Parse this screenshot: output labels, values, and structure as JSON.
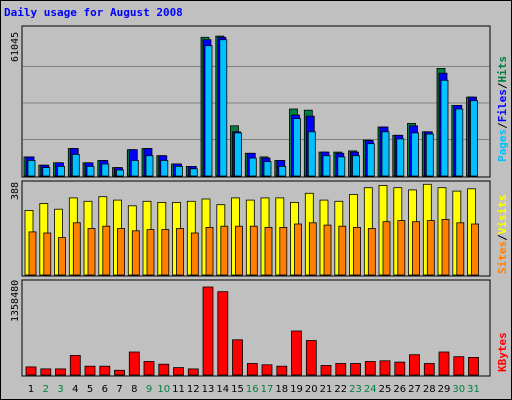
{
  "title": "Daily usage for August 2008",
  "colors": {
    "background": "#c0c0c0",
    "plot_bg": "#c0c0c0",
    "title": "#0000ff",
    "hits": "#008040",
    "files": "#0000ff",
    "pages": "#00c0ff",
    "visits": "#ffff00",
    "sites": "#ff8000",
    "kbytes": "#ff0000",
    "day_weekday": "#000000",
    "day_weekend": "#008040"
  },
  "chart_data": [
    {
      "type": "bar",
      "panel": "hits-files-pages",
      "ymax_label": "61045",
      "ylim": [
        0,
        61045
      ],
      "legend": [
        {
          "key": "pages",
          "label": "Pages"
        },
        {
          "key": "files",
          "label": "Files"
        },
        {
          "key": "hits",
          "label": "Hits"
        }
      ],
      "categories": [
        "1",
        "2",
        "3",
        "4",
        "5",
        "6",
        "7",
        "8",
        "9",
        "10",
        "11",
        "12",
        "13",
        "14",
        "15",
        "16",
        "17",
        "18",
        "19",
        "20",
        "21",
        "22",
        "23",
        "24",
        "25",
        "26",
        "27",
        "28",
        "29",
        "30",
        "31"
      ],
      "series": [
        {
          "name": "Hits",
          "key": "hits",
          "values": [
            8000,
            4500,
            5500,
            11500,
            5500,
            6500,
            3500,
            11000,
            11500,
            8500,
            5000,
            4000,
            58000,
            58500,
            21000,
            9500,
            8000,
            6500,
            28000,
            27500,
            10000,
            10000,
            10500,
            15000,
            20500,
            17000,
            22000,
            18500,
            45000,
            29500,
            33000
          ]
        },
        {
          "name": "Files",
          "key": "files",
          "values": [
            8000,
            4500,
            5500,
            11500,
            5500,
            6500,
            3500,
            11000,
            11500,
            8500,
            5000,
            4000,
            57000,
            58000,
            18500,
            9500,
            7500,
            6500,
            25500,
            25000,
            10000,
            9500,
            10000,
            14800,
            20500,
            17000,
            21000,
            18500,
            43000,
            29500,
            33000
          ]
        },
        {
          "name": "Pages",
          "key": "pages",
          "values": [
            6500,
            3500,
            4000,
            9000,
            4000,
            5000,
            2500,
            6500,
            8500,
            6500,
            4000,
            3000,
            54500,
            57000,
            18000,
            7500,
            6000,
            4000,
            24000,
            18500,
            8500,
            8000,
            8500,
            13500,
            18500,
            15500,
            18000,
            17500,
            40000,
            28000,
            31500
          ]
        }
      ]
    },
    {
      "type": "bar",
      "panel": "visits-sites",
      "ymax_label": "388",
      "ylim": [
        0,
        388
      ],
      "legend": [
        {
          "key": "sites",
          "label": "Sites"
        },
        {
          "key": "visits",
          "label": "Visits"
        }
      ],
      "categories": [
        "1",
        "2",
        "3",
        "4",
        "5",
        "6",
        "7",
        "8",
        "9",
        "10",
        "11",
        "12",
        "13",
        "14",
        "15",
        "16",
        "17",
        "18",
        "19",
        "20",
        "21",
        "22",
        "23",
        "24",
        "25",
        "26",
        "27",
        "28",
        "29",
        "30",
        "31"
      ],
      "series": [
        {
          "name": "Visits",
          "key": "visits",
          "values": [
            285,
            315,
            290,
            340,
            325,
            345,
            330,
            305,
            325,
            320,
            320,
            325,
            335,
            310,
            340,
            330,
            340,
            340,
            320,
            360,
            330,
            325,
            355,
            385,
            395,
            385,
            375,
            400,
            385,
            370,
            380
          ]
        },
        {
          "name": "Sites",
          "key": "sites",
          "values": [
            190,
            185,
            165,
            230,
            205,
            215,
            205,
            195,
            200,
            200,
            205,
            185,
            210,
            215,
            215,
            215,
            210,
            210,
            225,
            230,
            220,
            215,
            210,
            205,
            235,
            240,
            235,
            240,
            245,
            230,
            225
          ]
        }
      ]
    },
    {
      "type": "bar",
      "panel": "kbytes",
      "ymax_label": "1358480",
      "ylim": [
        0,
        1358480
      ],
      "legend": [
        {
          "key": "kbytes",
          "label": "KBytes"
        }
      ],
      "categories": [
        "1",
        "2",
        "3",
        "4",
        "5",
        "6",
        "7",
        "8",
        "9",
        "10",
        "11",
        "12",
        "13",
        "14",
        "15",
        "16",
        "17",
        "18",
        "19",
        "20",
        "21",
        "22",
        "23",
        "24",
        "25",
        "26",
        "27",
        "28",
        "29",
        "30",
        "31"
      ],
      "series": [
        {
          "name": "KBytes",
          "key": "kbytes",
          "values": [
            120000,
            90000,
            90000,
            290000,
            130000,
            130000,
            70000,
            340000,
            200000,
            160000,
            110000,
            90000,
            1300000,
            1230000,
            520000,
            170000,
            150000,
            130000,
            650000,
            510000,
            140000,
            170000,
            170000,
            200000,
            210000,
            190000,
            300000,
            170000,
            340000,
            270000,
            260000
          ]
        }
      ]
    }
  ],
  "days": [
    {
      "label": "1",
      "weekend": false
    },
    {
      "label": "2",
      "weekend": true
    },
    {
      "label": "3",
      "weekend": true
    },
    {
      "label": "4",
      "weekend": false
    },
    {
      "label": "5",
      "weekend": false
    },
    {
      "label": "6",
      "weekend": false
    },
    {
      "label": "7",
      "weekend": false
    },
    {
      "label": "8",
      "weekend": false
    },
    {
      "label": "9",
      "weekend": true
    },
    {
      "label": "10",
      "weekend": true
    },
    {
      "label": "11",
      "weekend": false
    },
    {
      "label": "12",
      "weekend": false
    },
    {
      "label": "13",
      "weekend": false
    },
    {
      "label": "14",
      "weekend": false
    },
    {
      "label": "15",
      "weekend": false
    },
    {
      "label": "16",
      "weekend": true
    },
    {
      "label": "17",
      "weekend": true
    },
    {
      "label": "18",
      "weekend": false
    },
    {
      "label": "19",
      "weekend": false
    },
    {
      "label": "20",
      "weekend": false
    },
    {
      "label": "21",
      "weekend": false
    },
    {
      "label": "22",
      "weekend": false
    },
    {
      "label": "23",
      "weekend": true
    },
    {
      "label": "24",
      "weekend": true
    },
    {
      "label": "25",
      "weekend": false
    },
    {
      "label": "26",
      "weekend": false
    },
    {
      "label": "27",
      "weekend": false
    },
    {
      "label": "28",
      "weekend": false
    },
    {
      "label": "29",
      "weekend": false
    },
    {
      "label": "30",
      "weekend": true
    },
    {
      "label": "31",
      "weekend": true
    }
  ]
}
